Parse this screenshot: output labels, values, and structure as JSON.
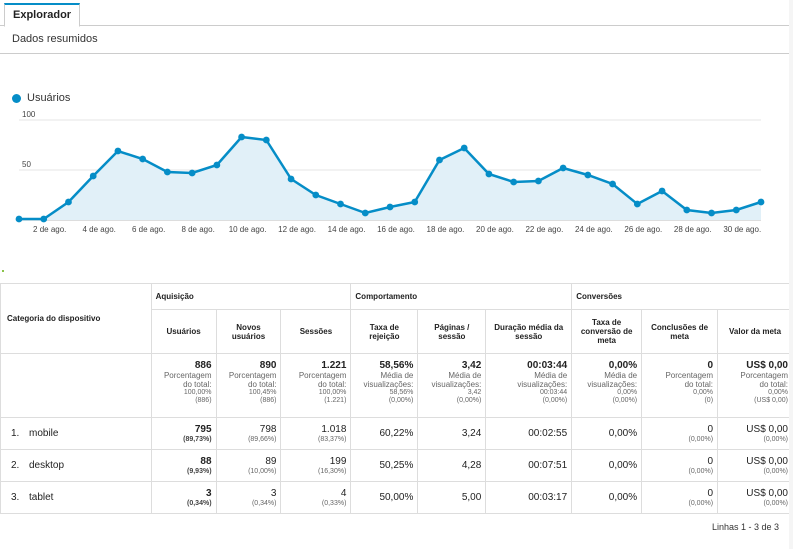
{
  "tab": {
    "label": "Explorador"
  },
  "subtab": {
    "label": "Dados resumidos"
  },
  "chart_data": {
    "type": "area",
    "series": [
      {
        "name": "Usuários",
        "color": "#058dc7",
        "values": [
          1,
          1,
          18,
          44,
          69,
          61,
          48,
          47,
          55,
          83,
          80,
          41,
          25,
          16,
          7,
          13,
          18,
          60,
          72,
          46,
          38,
          39,
          52,
          45,
          36,
          16,
          29,
          10,
          7,
          10,
          18
        ]
      }
    ],
    "x": [
      "1",
      "2",
      "3",
      "4",
      "5",
      "6",
      "7",
      "8",
      "9",
      "10",
      "11",
      "12",
      "13",
      "14",
      "15",
      "16",
      "17",
      "18",
      "19",
      "20",
      "21",
      "22",
      "23",
      "24",
      "25",
      "26",
      "27",
      "28",
      "29",
      "30",
      "31"
    ],
    "xtick_labels": [
      "2 de ago.",
      "4 de ago.",
      "6 de ago.",
      "8 de ago.",
      "10 de ago.",
      "12 de ago.",
      "14 de ago.",
      "16 de ago.",
      "18 de ago.",
      "20 de ago.",
      "22 de ago.",
      "24 de ago.",
      "26 de ago.",
      "28 de ago.",
      "30 de ago."
    ],
    "xtick_days": [
      2,
      4,
      6,
      8,
      10,
      12,
      14,
      16,
      18,
      20,
      22,
      24,
      26,
      28,
      30
    ],
    "yticks": [
      "100",
      "50"
    ],
    "ytick_values": [
      100,
      50
    ],
    "ylim": [
      0,
      100
    ],
    "legend": "top-left",
    "grid": true
  },
  "table": {
    "category_header": "Categoria do dispositivo",
    "groups": {
      "acq": "Aquisição",
      "beh": "Comportamento",
      "conv": "Conversões"
    },
    "columns": [
      "Usuários",
      "Novos usuários",
      "Sessões",
      "Taxa de rejeição",
      "Páginas / sessão",
      "Duração média da sessão",
      "Taxa de conversão de meta",
      "Conclusões de meta",
      "Valor da meta"
    ],
    "totals": [
      {
        "value": "886",
        "l1": "Porcentagem",
        "l2": "do total:",
        "l3": "100,00%",
        "l4": "(886)"
      },
      {
        "value": "890",
        "l1": "Porcentagem",
        "l2": "do total:",
        "l3": "100,45%",
        "l4": "(886)"
      },
      {
        "value": "1.221",
        "l1": "Porcentagem",
        "l2": "do total:",
        "l3": "100,00%",
        "l4": "(1.221)"
      },
      {
        "value": "58,56%",
        "l1": "Média de",
        "l2": "visualizações:",
        "l3": "58,56%",
        "l4": "(0,00%)"
      },
      {
        "value": "3,42",
        "l1": "Média de",
        "l2": "visualizações:",
        "l3": "3,42",
        "l4": "(0,00%)"
      },
      {
        "value": "00:03:44",
        "l1": "Média de",
        "l2": "visualizações:",
        "l3": "00:03:44",
        "l4": "(0,00%)"
      },
      {
        "value": "0,00%",
        "l1": "Média de",
        "l2": "visualizações:",
        "l3": "0,00%",
        "l4": "(0,00%)"
      },
      {
        "value": "0",
        "l1": "Porcentagem",
        "l2": "do total:",
        "l3": "0,00%",
        "l4": "(0)"
      },
      {
        "value": "US$ 0,00",
        "l1": "Porcentagem",
        "l2": "do total:",
        "l3": "0,00%",
        "l4": "(US$ 0,00)"
      }
    ],
    "rows": [
      {
        "idx": "1.",
        "cat": "mobile",
        "u": "795",
        "up": "(89,73%)",
        "n": "798",
        "np": "(89,66%)",
        "s": "1.018",
        "sp": "(83,37%)",
        "b": "60,22%",
        "p": "3,24",
        "d": "00:02:55",
        "c": "0,00%",
        "g": "0",
        "gp": "(0,00%)",
        "v": "US$ 0,00",
        "vp": "(0,00%)"
      },
      {
        "idx": "2.",
        "cat": "desktop",
        "u": "88",
        "up": "(9,93%)",
        "n": "89",
        "np": "(10,00%)",
        "s": "199",
        "sp": "(16,30%)",
        "b": "50,25%",
        "p": "4,28",
        "d": "00:07:51",
        "c": "0,00%",
        "g": "0",
        "gp": "(0,00%)",
        "v": "US$ 0,00",
        "vp": "(0,00%)"
      },
      {
        "idx": "3.",
        "cat": "tablet",
        "u": "3",
        "up": "(0,34%)",
        "n": "3",
        "np": "(0,34%)",
        "s": "4",
        "sp": "(0,33%)",
        "b": "50,00%",
        "p": "5,00",
        "d": "00:03:17",
        "c": "0,00%",
        "g": "0",
        "gp": "(0,00%)",
        "v": "US$ 0,00",
        "vp": "(0,00%)"
      }
    ],
    "footer": "Linhas 1 - 3 de 3"
  }
}
